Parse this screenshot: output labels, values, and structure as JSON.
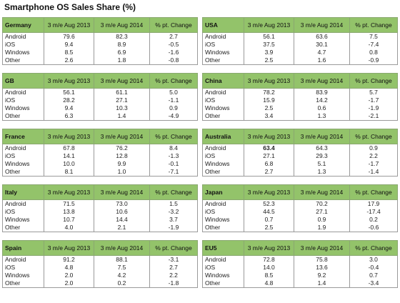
{
  "title": "Smartphone OS Sales Share (%)",
  "headers": [
    "3 m/e Aug 2013",
    "3 m/e Aug 2014",
    "% pt. Change"
  ],
  "left": [
    {
      "region": "Germany",
      "rows": [
        [
          "Android",
          "79.6",
          "82.3",
          "2.7"
        ],
        [
          "iOS",
          "9.4",
          "8.9",
          "-0.5"
        ],
        [
          "Windows",
          "8.5",
          "6.9",
          "-1.6"
        ],
        [
          "Other",
          "2.6",
          "1.8",
          "-0.8"
        ]
      ]
    },
    {
      "region": "GB",
      "rows": [
        [
          "Android",
          "56.1",
          "61.1",
          "5.0"
        ],
        [
          "iOS",
          "28.2",
          "27.1",
          "-1.1"
        ],
        [
          "Windows",
          "9.4",
          "10.3",
          "0.9"
        ],
        [
          "Other",
          "6.3",
          "1.4",
          "-4.9"
        ]
      ]
    },
    {
      "region": "France",
      "rows": [
        [
          "Android",
          "67.8",
          "76.2",
          "8.4"
        ],
        [
          "iOS",
          "14.1",
          "12.8",
          "-1.3"
        ],
        [
          "Windows",
          "10.0",
          "9.9",
          "-0.1"
        ],
        [
          "Other",
          "8.1",
          "1.0",
          "-7.1"
        ]
      ]
    },
    {
      "region": "Italy",
      "rows": [
        [
          "Android",
          "71.5",
          "73.0",
          "1.5"
        ],
        [
          "iOS",
          "13.8",
          "10.6",
          "-3.2"
        ],
        [
          "Windows",
          "10.7",
          "14.4",
          "3.7"
        ],
        [
          "Other",
          "4.0",
          "2.1",
          "-1.9"
        ]
      ]
    },
    {
      "region": "Spain",
      "rows": [
        [
          "Android",
          "91.2",
          "88.1",
          "-3.1"
        ],
        [
          "iOS",
          "4.8",
          "7.5",
          "2.7"
        ],
        [
          "Windows",
          "2.0",
          "4.2",
          "2.2"
        ],
        [
          "Other",
          "2.0",
          "0.2",
          "-1.8"
        ]
      ]
    }
  ],
  "right": [
    {
      "region": "USA",
      "rows": [
        [
          "Android",
          "56.1",
          "63.6",
          "7.5"
        ],
        [
          "iOS",
          "37.5",
          "30.1",
          "-7.4"
        ],
        [
          "Windows",
          "3.9",
          "4.7",
          "0.8"
        ],
        [
          "Other",
          "2.5",
          "1.6",
          "-0.9"
        ]
      ]
    },
    {
      "region": "China",
      "rows": [
        [
          "Android",
          "78.2",
          "83.9",
          "5.7"
        ],
        [
          "iOS",
          "15.9",
          "14.2",
          "-1.7"
        ],
        [
          "Windows",
          "2.5",
          "0.6",
          "-1.9"
        ],
        [
          "Other",
          "3.4",
          "1.3",
          "-2.1"
        ]
      ]
    },
    {
      "region": "Australia",
      "rows": [
        [
          "Android",
          "63.4",
          "64.3",
          "0.9"
        ],
        [
          "iOS",
          "27.1",
          "29.3",
          "2.2"
        ],
        [
          "Windows",
          "6.8",
          "5.1",
          "-1.7"
        ],
        [
          "Other",
          "2.7",
          "1.3",
          "-1.4"
        ]
      ]
    },
    {
      "region": "Japan",
      "rows": [
        [
          "Android",
          "52.3",
          "70.2",
          "17.9"
        ],
        [
          "iOS",
          "44.5",
          "27.1",
          "-17.4"
        ],
        [
          "Windows",
          "0.7",
          "0.9",
          "0.2"
        ],
        [
          "Other",
          "2.5",
          "1.9",
          "-0.6"
        ]
      ]
    },
    {
      "region": "EU5",
      "rows": [
        [
          "Android",
          "72.8",
          "75.8",
          "3.0"
        ],
        [
          "iOS",
          "14.0",
          "13.6",
          "-0.4"
        ],
        [
          "Windows",
          "8.5",
          "9.2",
          "0.7"
        ],
        [
          "Other",
          "4.8",
          "1.4",
          "-3.4"
        ]
      ]
    }
  ]
}
